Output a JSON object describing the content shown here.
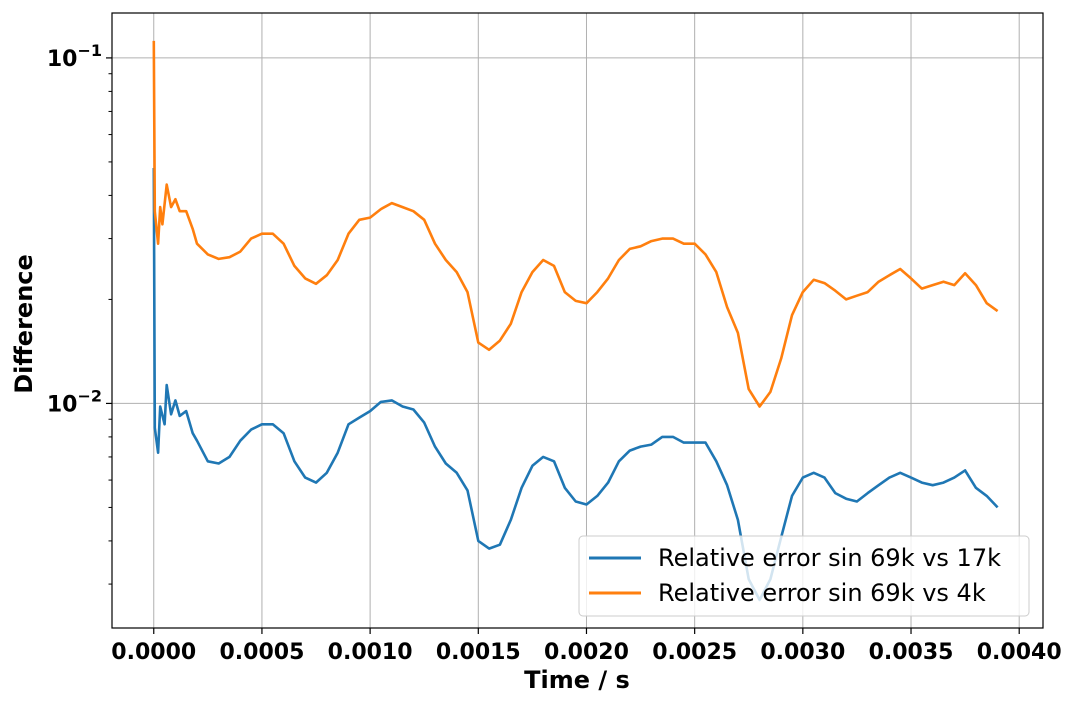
{
  "chart_data": {
    "type": "line",
    "xlabel": "Time / s",
    "ylabel": "Difference",
    "xlim": [
      -0.000193,
      0.00411
    ],
    "ylim_log10": [
      -2.65,
      -0.87
    ],
    "y_scale": "log",
    "grid": true,
    "legend_position": "lower-right",
    "x_ticks": [
      0.0,
      0.0005,
      0.001,
      0.0015,
      0.002,
      0.0025,
      0.003,
      0.0035,
      0.004
    ],
    "x_tick_labels": [
      "0.0000",
      "0.0005",
      "0.0010",
      "0.0015",
      "0.0020",
      "0.0025",
      "0.0030",
      "0.0035",
      "0.0040"
    ],
    "y_ticks": [
      {
        "value": 0.1,
        "base": "10",
        "exp": "−1"
      },
      {
        "value": 0.01,
        "base": "10",
        "exp": "−2"
      }
    ],
    "series": [
      {
        "name": "Relative error sin 69k vs 17k",
        "color": "#1f77b4",
        "points": [
          [
            0.0,
            0.048
          ],
          [
            5e-06,
            0.0085
          ],
          [
            2e-05,
            0.0072
          ],
          [
            3e-05,
            0.0098
          ],
          [
            5e-05,
            0.0087
          ],
          [
            6e-05,
            0.0113
          ],
          [
            8e-05,
            0.0093
          ],
          [
            0.0001,
            0.0102
          ],
          [
            0.00012,
            0.0092
          ],
          [
            0.00015,
            0.0095
          ],
          [
            0.00018,
            0.0082
          ],
          [
            0.0002,
            0.0078
          ],
          [
            0.00025,
            0.0068
          ],
          [
            0.0003,
            0.0067
          ],
          [
            0.00035,
            0.007
          ],
          [
            0.0004,
            0.0078
          ],
          [
            0.00045,
            0.0084
          ],
          [
            0.0005,
            0.0087
          ],
          [
            0.00055,
            0.0087
          ],
          [
            0.0006,
            0.0082
          ],
          [
            0.00065,
            0.0068
          ],
          [
            0.0007,
            0.0061
          ],
          [
            0.00075,
            0.0059
          ],
          [
            0.0008,
            0.0063
          ],
          [
            0.00085,
            0.0072
          ],
          [
            0.0009,
            0.0087
          ],
          [
            0.00095,
            0.0091
          ],
          [
            0.001,
            0.0095
          ],
          [
            0.00105,
            0.0101
          ],
          [
            0.0011,
            0.0102
          ],
          [
            0.00115,
            0.0098
          ],
          [
            0.0012,
            0.0096
          ],
          [
            0.00125,
            0.0088
          ],
          [
            0.0013,
            0.0075
          ],
          [
            0.00135,
            0.0067
          ],
          [
            0.0014,
            0.0063
          ],
          [
            0.00145,
            0.0056
          ],
          [
            0.0015,
            0.004
          ],
          [
            0.00155,
            0.0038
          ],
          [
            0.0016,
            0.0039
          ],
          [
            0.00165,
            0.0046
          ],
          [
            0.0017,
            0.0057
          ],
          [
            0.00175,
            0.0066
          ],
          [
            0.0018,
            0.007
          ],
          [
            0.00185,
            0.0068
          ],
          [
            0.0019,
            0.0057
          ],
          [
            0.00195,
            0.0052
          ],
          [
            0.002,
            0.0051
          ],
          [
            0.00205,
            0.0054
          ],
          [
            0.0021,
            0.0059
          ],
          [
            0.00215,
            0.0068
          ],
          [
            0.0022,
            0.0073
          ],
          [
            0.00225,
            0.0075
          ],
          [
            0.0023,
            0.0076
          ],
          [
            0.00235,
            0.008
          ],
          [
            0.0024,
            0.008
          ],
          [
            0.00245,
            0.0077
          ],
          [
            0.0025,
            0.0077
          ],
          [
            0.00255,
            0.0077
          ],
          [
            0.0026,
            0.0068
          ],
          [
            0.00265,
            0.0058
          ],
          [
            0.0027,
            0.0046
          ],
          [
            0.00275,
            0.0031
          ],
          [
            0.0028,
            0.0027
          ],
          [
            0.00285,
            0.0031
          ],
          [
            0.0029,
            0.0041
          ],
          [
            0.00295,
            0.0054
          ],
          [
            0.003,
            0.0061
          ],
          [
            0.00305,
            0.0063
          ],
          [
            0.0031,
            0.0061
          ],
          [
            0.00315,
            0.0055
          ],
          [
            0.0032,
            0.0053
          ],
          [
            0.00325,
            0.0052
          ],
          [
            0.0033,
            0.0055
          ],
          [
            0.00335,
            0.0058
          ],
          [
            0.0034,
            0.0061
          ],
          [
            0.00345,
            0.0063
          ],
          [
            0.0035,
            0.0061
          ],
          [
            0.00355,
            0.0059
          ],
          [
            0.0036,
            0.0058
          ],
          [
            0.00365,
            0.0059
          ],
          [
            0.0037,
            0.0061
          ],
          [
            0.00375,
            0.0064
          ],
          [
            0.0038,
            0.0057
          ],
          [
            0.00385,
            0.0054
          ],
          [
            0.0039,
            0.005
          ]
        ]
      },
      {
        "name": "Relative error sin 69k vs 4k",
        "color": "#ff7f0e",
        "points": [
          [
            0.0,
            0.112
          ],
          [
            5e-06,
            0.036
          ],
          [
            2e-05,
            0.029
          ],
          [
            3e-05,
            0.037
          ],
          [
            4e-05,
            0.033
          ],
          [
            6e-05,
            0.043
          ],
          [
            8e-05,
            0.037
          ],
          [
            0.0001,
            0.039
          ],
          [
            0.00012,
            0.036
          ],
          [
            0.00015,
            0.036
          ],
          [
            0.00018,
            0.032
          ],
          [
            0.0002,
            0.029
          ],
          [
            0.00025,
            0.027
          ],
          [
            0.0003,
            0.0262
          ],
          [
            0.00035,
            0.0265
          ],
          [
            0.0004,
            0.0275
          ],
          [
            0.00045,
            0.03
          ],
          [
            0.0005,
            0.031
          ],
          [
            0.00055,
            0.031
          ],
          [
            0.0006,
            0.029
          ],
          [
            0.00065,
            0.025
          ],
          [
            0.0007,
            0.023
          ],
          [
            0.00075,
            0.0222
          ],
          [
            0.0008,
            0.0235
          ],
          [
            0.00085,
            0.026
          ],
          [
            0.0009,
            0.031
          ],
          [
            0.00095,
            0.034
          ],
          [
            0.001,
            0.0345
          ],
          [
            0.00105,
            0.0365
          ],
          [
            0.0011,
            0.038
          ],
          [
            0.00115,
            0.037
          ],
          [
            0.0012,
            0.036
          ],
          [
            0.00125,
            0.034
          ],
          [
            0.0013,
            0.029
          ],
          [
            0.00135,
            0.026
          ],
          [
            0.0014,
            0.024
          ],
          [
            0.00145,
            0.021
          ],
          [
            0.0015,
            0.015
          ],
          [
            0.00155,
            0.0143
          ],
          [
            0.0016,
            0.0152
          ],
          [
            0.00165,
            0.017
          ],
          [
            0.0017,
            0.021
          ],
          [
            0.00175,
            0.024
          ],
          [
            0.0018,
            0.026
          ],
          [
            0.00185,
            0.025
          ],
          [
            0.0019,
            0.021
          ],
          [
            0.00195,
            0.0198
          ],
          [
            0.002,
            0.0195
          ],
          [
            0.00205,
            0.021
          ],
          [
            0.0021,
            0.023
          ],
          [
            0.00215,
            0.026
          ],
          [
            0.0022,
            0.028
          ],
          [
            0.00225,
            0.0285
          ],
          [
            0.0023,
            0.0295
          ],
          [
            0.00235,
            0.03
          ],
          [
            0.0024,
            0.03
          ],
          [
            0.00245,
            0.029
          ],
          [
            0.0025,
            0.029
          ],
          [
            0.00255,
            0.027
          ],
          [
            0.0026,
            0.024
          ],
          [
            0.00265,
            0.019
          ],
          [
            0.0027,
            0.016
          ],
          [
            0.00275,
            0.011
          ],
          [
            0.0028,
            0.0098
          ],
          [
            0.00285,
            0.0108
          ],
          [
            0.0029,
            0.0135
          ],
          [
            0.00295,
            0.018
          ],
          [
            0.003,
            0.021
          ],
          [
            0.00305,
            0.0228
          ],
          [
            0.0031,
            0.0223
          ],
          [
            0.00315,
            0.0212
          ],
          [
            0.0032,
            0.02
          ],
          [
            0.00325,
            0.0205
          ],
          [
            0.0033,
            0.021
          ],
          [
            0.00335,
            0.0225
          ],
          [
            0.0034,
            0.0235
          ],
          [
            0.00345,
            0.0245
          ],
          [
            0.0035,
            0.023
          ],
          [
            0.00355,
            0.0215
          ],
          [
            0.0036,
            0.022
          ],
          [
            0.00365,
            0.0225
          ],
          [
            0.0037,
            0.022
          ],
          [
            0.00375,
            0.0238
          ],
          [
            0.0038,
            0.022
          ],
          [
            0.00385,
            0.0195
          ],
          [
            0.0039,
            0.0185
          ]
        ]
      }
    ]
  }
}
